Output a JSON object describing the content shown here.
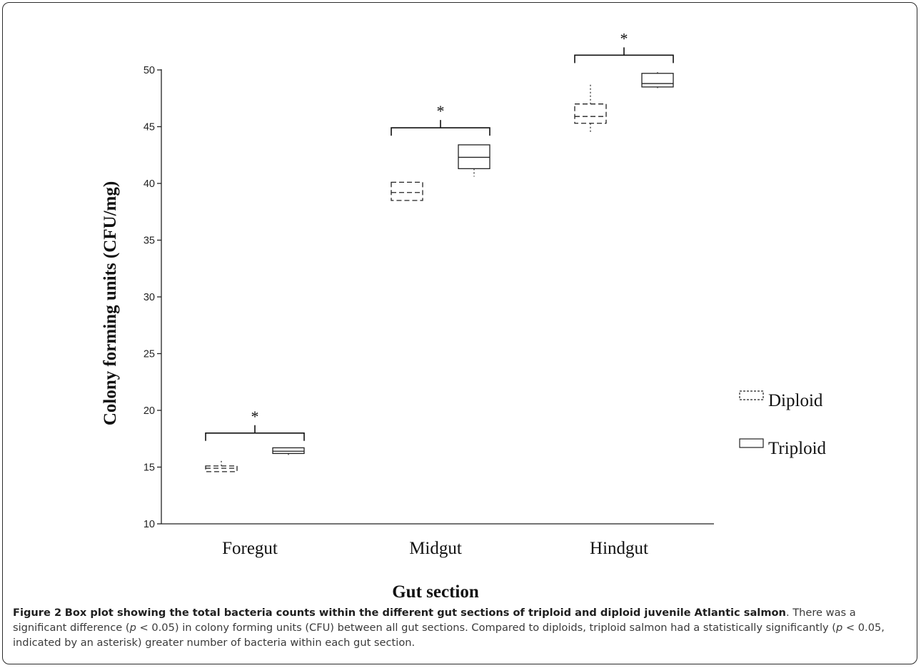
{
  "chart_data": {
    "type": "box",
    "categories": [
      "Foregut",
      "Midgut",
      "Hindgut"
    ],
    "xlabel": "Gut section",
    "ylabel": "Colony forming units (CFU/mg)",
    "ylim": [
      10,
      50
    ],
    "yticks": [
      10,
      15,
      20,
      25,
      30,
      35,
      40,
      45,
      50
    ],
    "grid": false,
    "legend_position": "right",
    "series": [
      {
        "name": "Diploid",
        "line_style": "dashed",
        "boxes": [
          {
            "category": "Foregut",
            "min": 14.6,
            "q1": 14.6,
            "median": 14.9,
            "q3": 15.1,
            "max": 15.7
          },
          {
            "category": "Midgut",
            "min": 38.5,
            "q1": 38.5,
            "median": 39.2,
            "q3": 40.1,
            "max": 40.1
          },
          {
            "category": "Hindgut",
            "min": 44.5,
            "q1": 45.3,
            "median": 45.9,
            "q3": 47.0,
            "max": 48.7
          }
        ]
      },
      {
        "name": "Triploid",
        "line_style": "solid",
        "boxes": [
          {
            "category": "Foregut",
            "min": 16.0,
            "q1": 16.2,
            "median": 16.4,
            "q3": 16.7,
            "max": 16.7
          },
          {
            "category": "Midgut",
            "min": 40.6,
            "q1": 41.3,
            "median": 42.3,
            "q3": 43.4,
            "max": 43.4
          },
          {
            "category": "Hindgut",
            "min": 48.4,
            "q1": 48.5,
            "median": 48.8,
            "q3": 49.7,
            "max": 49.8
          }
        ]
      }
    ],
    "significance": [
      {
        "category": "Foregut",
        "bracket_y": 18.0,
        "symbol": "*"
      },
      {
        "category": "Midgut",
        "bracket_y": 44.9,
        "symbol": "*"
      },
      {
        "category": "Hindgut",
        "bracket_y": 51.3,
        "symbol": "*"
      }
    ]
  },
  "caption": {
    "label": "Figure 2",
    "title": "Box plot showing the total bacteria counts within the different gut sections of triploid and diploid juvenile Atlantic salmon",
    "title_end": ".",
    "text_1": "There was a significant difference (",
    "p_1": "p",
    "text_2": " < 0.05) in colony forming units (CFU) between all gut sections. Compared to diploids, triploid salmon had a statistically significantly (",
    "p_2": "p",
    "text_3": " < 0.05, indicated by an asterisk) greater number of bacteria within each gut section."
  }
}
